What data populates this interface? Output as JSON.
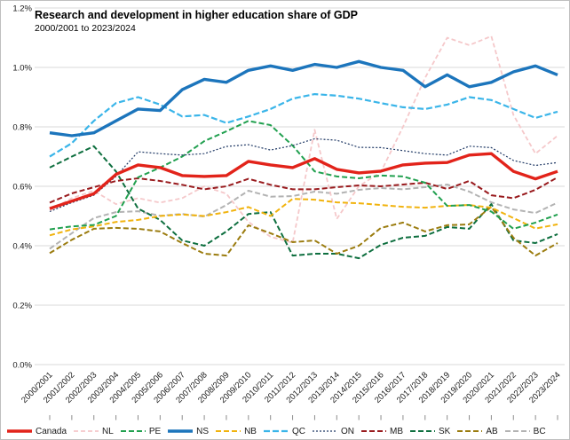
{
  "chart_data": {
    "type": "line",
    "title": "Research and development in higher education share of GDP",
    "subtitle": "2000/2001 to 2023/2024",
    "xlabel": "",
    "ylabel": "",
    "ylim": [
      0,
      1.2
    ],
    "yticks": [
      "0.0%",
      "0.2%",
      "0.4%",
      "0.6%",
      "0.8%",
      "1.0%",
      "1.2%"
    ],
    "grid": "horizontal",
    "legend_position": "bottom",
    "x": [
      "2000/2001",
      "2001/2002",
      "2002/2003",
      "2003/2004",
      "2004/2005",
      "2005/2006",
      "2006/2007",
      "2007/2008",
      "2008/2009",
      "2009/2010",
      "2010/2011",
      "2011/2012",
      "2012/2013",
      "2013/2014",
      "2014/2015",
      "2015/2016",
      "2016/2017",
      "2017/2018",
      "2018/2019",
      "2019/2020",
      "2020/2021",
      "2021/2022",
      "2022/2023",
      "2023/2024"
    ],
    "series": [
      {
        "name": "Canada",
        "color": "#e2231a",
        "width": 3.4,
        "dash": "",
        "z": 10,
        "values": [
          0.525,
          0.55,
          0.575,
          0.64,
          0.672,
          0.663,
          0.636,
          0.633,
          0.636,
          0.684,
          0.672,
          0.663,
          0.693,
          0.657,
          0.645,
          0.651,
          0.672,
          0.678,
          0.68,
          0.705,
          0.71,
          0.65,
          0.625,
          0.65
        ]
      },
      {
        "name": "NL",
        "color": "#f5c8ca",
        "width": 1.8,
        "dash": "5 3",
        "z": 2,
        "values": [
          0.52,
          0.56,
          0.585,
          0.54,
          0.56,
          0.545,
          0.56,
          0.6,
          0.575,
          0.48,
          0.43,
          0.41,
          0.79,
          0.49,
          0.6,
          0.648,
          0.8,
          0.965,
          1.1,
          1.075,
          1.105,
          0.84,
          0.71,
          0.77
        ]
      },
      {
        "name": "PE",
        "color": "#21a04f",
        "width": 2,
        "dash": "6 3",
        "z": 6,
        "values": [
          0.455,
          0.465,
          0.47,
          0.5,
          0.63,
          0.663,
          0.7,
          0.752,
          0.785,
          0.82,
          0.806,
          0.737,
          0.65,
          0.633,
          0.627,
          0.636,
          0.633,
          0.612,
          0.534,
          0.537,
          0.515,
          0.457,
          0.478,
          0.505
        ]
      },
      {
        "name": "NS",
        "color": "#1c75bc",
        "width": 3.4,
        "dash": "",
        "z": 11,
        "values": [
          0.78,
          0.77,
          0.78,
          0.82,
          0.86,
          0.855,
          0.925,
          0.96,
          0.95,
          0.99,
          1.005,
          0.99,
          1.01,
          1.0,
          1.02,
          1.0,
          0.99,
          0.935,
          0.975,
          0.935,
          0.95,
          0.985,
          1.005,
          0.975
        ]
      },
      {
        "name": "NB",
        "color": "#f1b30e",
        "width": 2,
        "dash": "6 3",
        "z": 4,
        "values": [
          0.435,
          0.455,
          0.465,
          0.48,
          0.487,
          0.5,
          0.505,
          0.5,
          0.513,
          0.53,
          0.5,
          0.558,
          0.555,
          0.546,
          0.543,
          0.537,
          0.531,
          0.528,
          0.534,
          0.537,
          0.528,
          0.493,
          0.458,
          0.472
        ]
      },
      {
        "name": "QC",
        "color": "#3ab5e9",
        "width": 2.2,
        "dash": "7 3",
        "z": 7,
        "values": [
          0.7,
          0.745,
          0.82,
          0.88,
          0.9,
          0.875,
          0.835,
          0.84,
          0.813,
          0.835,
          0.86,
          0.895,
          0.91,
          0.905,
          0.895,
          0.88,
          0.866,
          0.86,
          0.875,
          0.9,
          0.89,
          0.86,
          0.83,
          0.851
        ]
      },
      {
        "name": "ON",
        "color": "#1f3864",
        "width": 1.2,
        "dash": "2 2",
        "z": 8,
        "values": [
          0.515,
          0.545,
          0.57,
          0.633,
          0.716,
          0.71,
          0.705,
          0.71,
          0.734,
          0.74,
          0.722,
          0.737,
          0.76,
          0.755,
          0.731,
          0.73,
          0.72,
          0.71,
          0.705,
          0.735,
          0.73,
          0.687,
          0.67,
          0.68
        ]
      },
      {
        "name": "MB",
        "color": "#991b1e",
        "width": 2,
        "dash": "6 3",
        "z": 5,
        "values": [
          0.545,
          0.576,
          0.597,
          0.618,
          0.627,
          0.618,
          0.605,
          0.59,
          0.6,
          0.625,
          0.605,
          0.59,
          0.59,
          0.597,
          0.603,
          0.6,
          0.606,
          0.612,
          0.591,
          0.618,
          0.57,
          0.56,
          0.588,
          0.63
        ]
      },
      {
        "name": "SK",
        "color": "#0e6f3f",
        "width": 2,
        "dash": "6 3",
        "z": 3,
        "values": [
          0.663,
          0.7,
          0.735,
          0.65,
          0.525,
          0.487,
          0.418,
          0.4,
          0.448,
          0.507,
          0.513,
          0.367,
          0.373,
          0.373,
          0.358,
          0.403,
          0.427,
          0.433,
          0.463,
          0.457,
          0.54,
          0.418,
          0.409,
          0.439
        ]
      },
      {
        "name": "AB",
        "color": "#9b7c0f",
        "width": 2,
        "dash": "6 3",
        "z": 3,
        "values": [
          0.375,
          0.42,
          0.457,
          0.46,
          0.457,
          0.448,
          0.409,
          0.373,
          0.367,
          0.469,
          0.442,
          0.412,
          0.418,
          0.373,
          0.4,
          0.46,
          0.478,
          0.448,
          0.469,
          0.472,
          0.531,
          0.427,
          0.367,
          0.409
        ]
      },
      {
        "name": "BC",
        "color": "#b3b3b3",
        "width": 2,
        "dash": "6 3",
        "z": 1,
        "values": [
          0.39,
          0.442,
          0.493,
          0.513,
          0.516,
          0.501,
          0.507,
          0.498,
          0.537,
          0.585,
          0.565,
          0.567,
          0.582,
          0.575,
          0.588,
          0.594,
          0.59,
          0.597,
          0.606,
          0.582,
          0.546,
          0.522,
          0.51,
          0.545
        ]
      }
    ]
  }
}
